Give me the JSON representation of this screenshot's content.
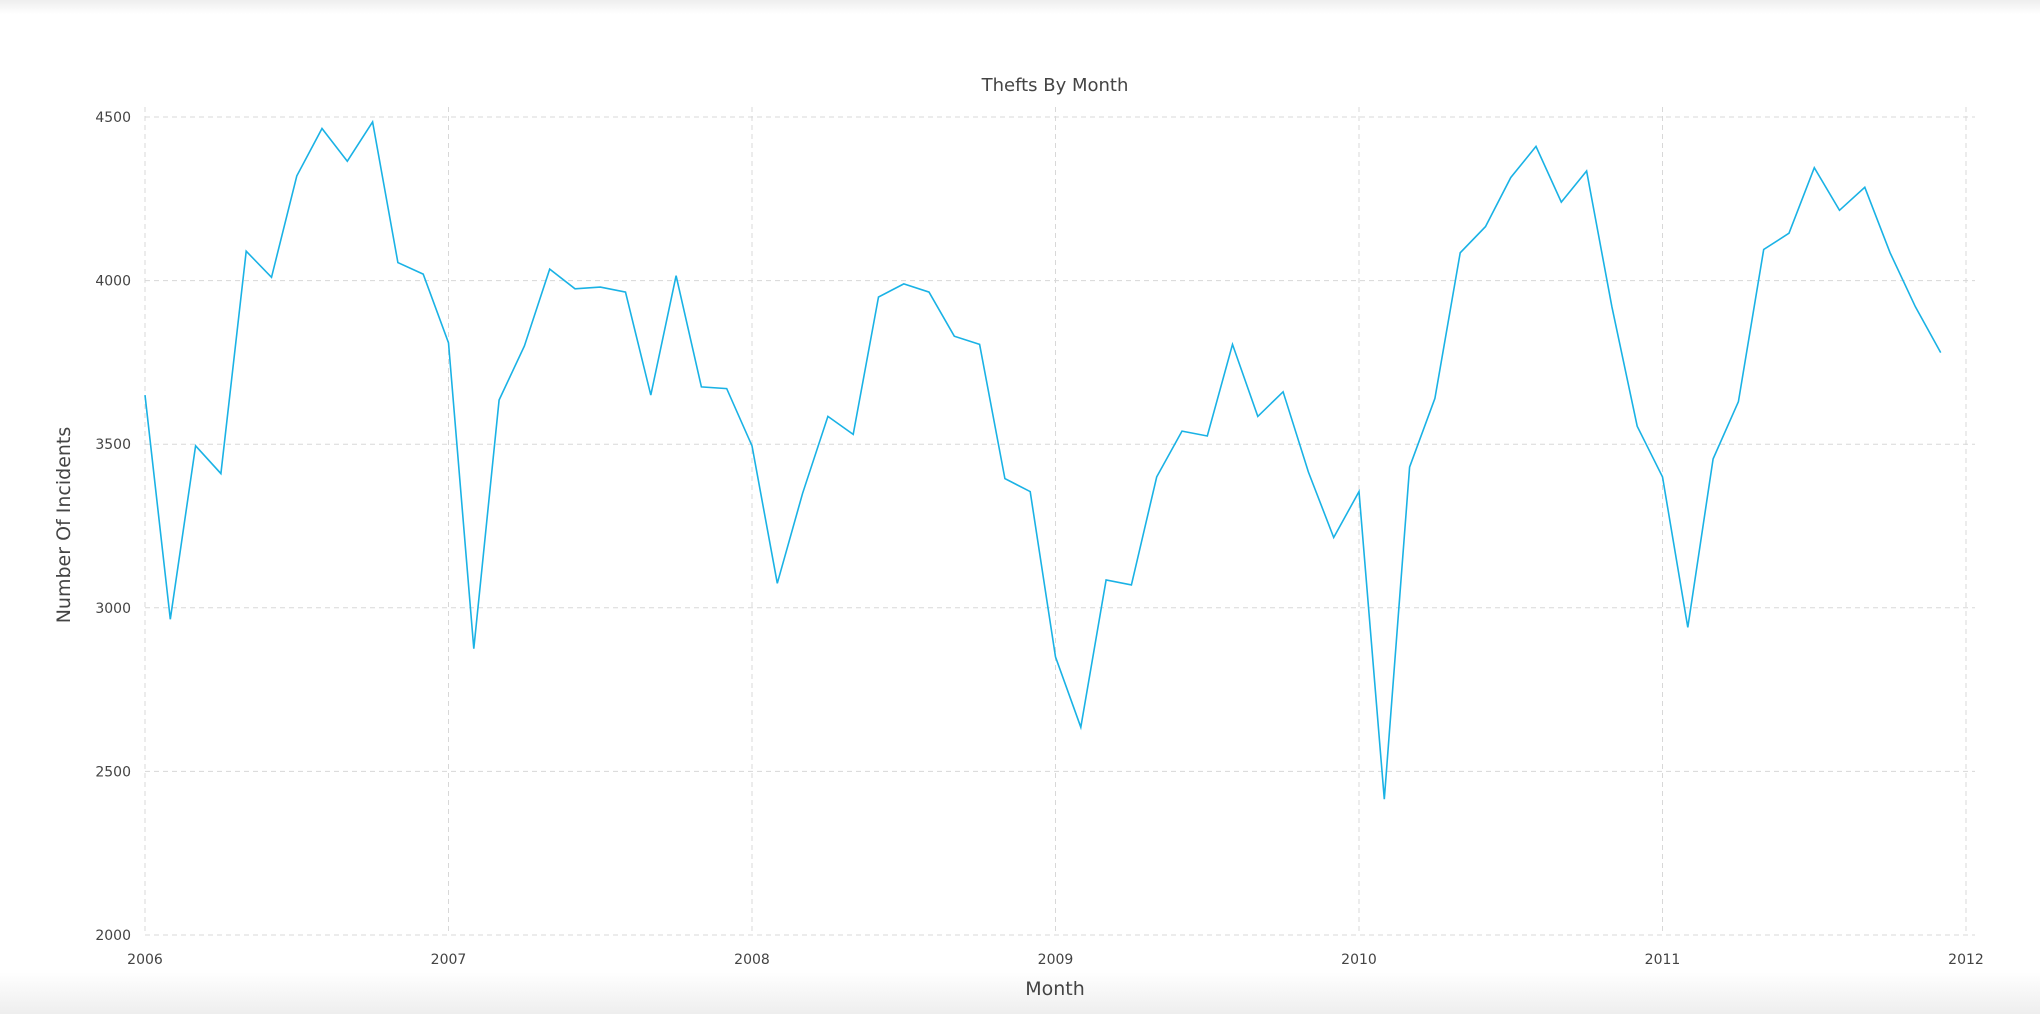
{
  "chart_data": {
    "type": "line",
    "title": "Thefts By Month",
    "xlabel": "Month",
    "ylabel": "Number Of Incidents",
    "xlim": [
      2006,
      2012
    ],
    "ylim": [
      2000,
      4500
    ],
    "x_ticks": [
      "2006",
      "2007",
      "2008",
      "2009",
      "2010",
      "2011",
      "2012"
    ],
    "y_ticks": [
      2000,
      2500,
      3000,
      3500,
      4000,
      4500
    ],
    "grid": true,
    "line_color": "#1ab2e5",
    "x": [
      "2006-01",
      "2006-02",
      "2006-03",
      "2006-04",
      "2006-05",
      "2006-06",
      "2006-07",
      "2006-08",
      "2006-09",
      "2006-10",
      "2006-11",
      "2006-12",
      "2007-01",
      "2007-02",
      "2007-03",
      "2007-04",
      "2007-05",
      "2007-06",
      "2007-07",
      "2007-08",
      "2007-09",
      "2007-10",
      "2007-11",
      "2007-12",
      "2008-01",
      "2008-02",
      "2008-03",
      "2008-04",
      "2008-05",
      "2008-06",
      "2008-07",
      "2008-08",
      "2008-09",
      "2008-10",
      "2008-11",
      "2008-12",
      "2009-01",
      "2009-02",
      "2009-03",
      "2009-04",
      "2009-05",
      "2009-06",
      "2009-07",
      "2009-08",
      "2009-09",
      "2009-10",
      "2009-11",
      "2009-12",
      "2010-01",
      "2010-02",
      "2010-03",
      "2010-04",
      "2010-05",
      "2010-06",
      "2010-07",
      "2010-08",
      "2010-09",
      "2010-10",
      "2010-11",
      "2010-12",
      "2011-01",
      "2011-02",
      "2011-03",
      "2011-04",
      "2011-05",
      "2011-06",
      "2011-07",
      "2011-08",
      "2011-09",
      "2011-10",
      "2011-11",
      "2011-12"
    ],
    "series": [
      {
        "values": [
          3650,
          2965,
          3495,
          3410,
          4090,
          4010,
          4320,
          4465,
          4365,
          4485,
          4055,
          4020,
          3810,
          2875,
          3635,
          3800,
          4035,
          3975,
          3980,
          3965,
          3650,
          4015,
          3675,
          3670,
          3495,
          3075,
          3350,
          3585,
          3530,
          3950,
          3990,
          3965,
          3830,
          3805,
          3395,
          3355,
          2850,
          2635,
          3085,
          3070,
          3400,
          3540,
          3525,
          3805,
          3585,
          3660,
          3415,
          3215,
          3355,
          2415,
          3430,
          3640,
          4085,
          4165,
          4315,
          4410,
          4240,
          4335,
          3920,
          3555,
          3400,
          2940,
          3455,
          3630,
          4095,
          4145,
          4345,
          4215,
          4285,
          4085,
          3920,
          3780
        ]
      }
    ]
  }
}
